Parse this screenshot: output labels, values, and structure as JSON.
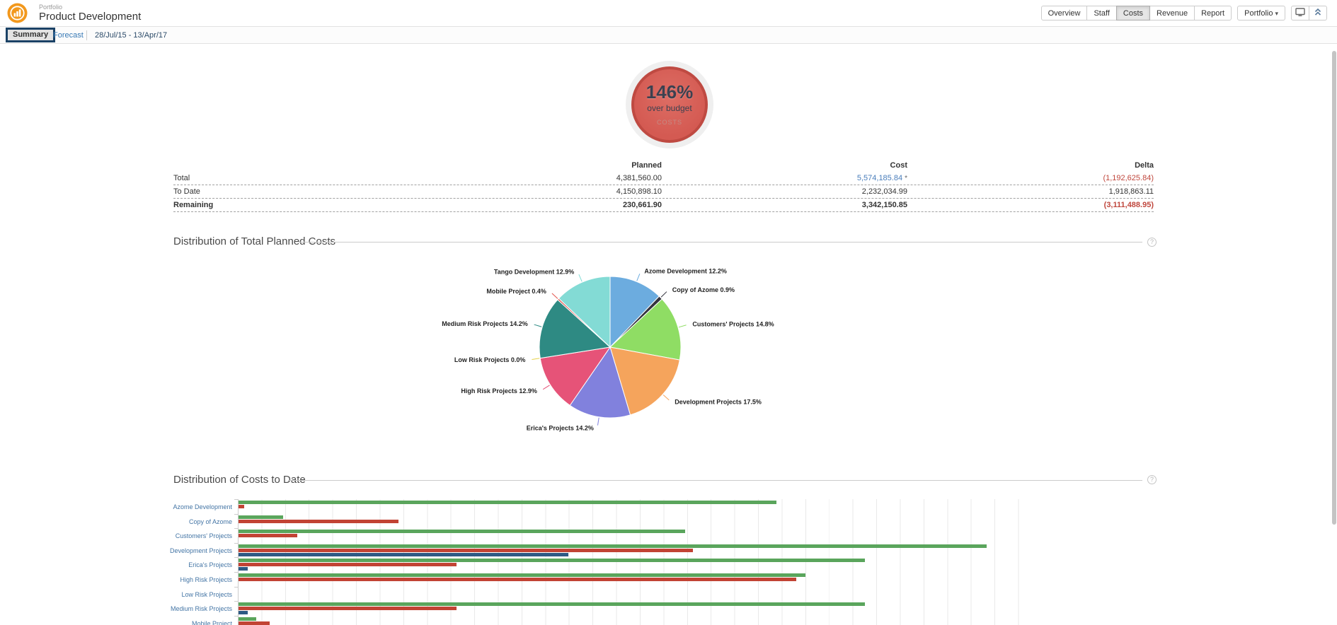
{
  "header": {
    "app_label": "Portfolio",
    "title": "Product Development",
    "nav_tabs": [
      {
        "label": "Overview",
        "active": false
      },
      {
        "label": "Staff",
        "active": false
      },
      {
        "label": "Costs",
        "active": true
      },
      {
        "label": "Revenue",
        "active": false
      },
      {
        "label": "Report",
        "active": false
      }
    ],
    "portfolio_dropdown_label": "Portfolio",
    "icon_buttons": [
      {
        "name": "monitor-icon"
      },
      {
        "name": "collapse-up-icon"
      }
    ]
  },
  "subnav": {
    "tabs": [
      {
        "label": "Summary",
        "active": true
      },
      {
        "label": "Forecast",
        "active": false
      }
    ],
    "date_range": "28/Jul/15 - 13/Apr/17"
  },
  "budget_badge": {
    "percent": "146%",
    "label": "over budget",
    "category": "COSTS",
    "fill_color": "#d45a52",
    "ring_color": "#bf4a42"
  },
  "summary_table": {
    "columns": {
      "planned": "Planned",
      "cost": "Cost",
      "delta": "Delta"
    },
    "rows": [
      {
        "label": "Total",
        "planned": "4,381,560.00",
        "cost": "5,574,185.84",
        "cost_note": "*",
        "cost_link": true,
        "delta": "(1,192,625.84)",
        "delta_color": "#c0473d",
        "bold": false
      },
      {
        "label": "To Date",
        "planned": "4,150,898.10",
        "cost": "2,232,034.99",
        "cost_note": "",
        "cost_link": false,
        "delta": "1,918,863.11",
        "delta_color": "#333333",
        "bold": false
      },
      {
        "label": "Remaining",
        "planned": "230,661.90",
        "cost": "3,342,150.85",
        "cost_note": "",
        "cost_link": false,
        "delta": "(3,111,488.95)",
        "delta_color": "#c0473d",
        "bold": true
      }
    ]
  },
  "sections": {
    "planned": {
      "title": "Distribution of Total Planned Costs",
      "help_icon": "?"
    },
    "to_date": {
      "title": "Distribution of Costs to Date",
      "help_icon": "?"
    }
  },
  "chart_data": [
    {
      "type": "pie",
      "title": "Distribution of Total Planned Costs",
      "start": "12 o'clock, clockwise",
      "label_suffix": "%",
      "slices": [
        {
          "label": "Azome Development",
          "value": 12.2,
          "color": "#6cacdf"
        },
        {
          "label": "Copy of Azome",
          "value": 0.9,
          "color": "#34343e"
        },
        {
          "label": "Customers' Projects",
          "value": 14.8,
          "color": "#8fdd64"
        },
        {
          "label": "Development Projects",
          "value": 17.5,
          "color": "#f5a45c"
        },
        {
          "label": "Erica's Projects",
          "value": 14.2,
          "color": "#8181dd"
        },
        {
          "label": "High Risk Projects",
          "value": 12.9,
          "color": "#e65378"
        },
        {
          "label": "Low Risk Projects",
          "value": 0.0,
          "color": "#e6d24b"
        },
        {
          "label": "Medium Risk Projects",
          "value": 14.2,
          "color": "#2e8a83"
        },
        {
          "label": "Mobile Project",
          "value": 0.4,
          "color": "#e3554d"
        },
        {
          "label": "Tango Development",
          "value": 12.9,
          "color": "#83dbd5"
        }
      ]
    },
    {
      "type": "bar",
      "title": "Distribution of Costs to Date",
      "orientation": "horizontal",
      "axis_note": "x-axis tick labels are not visible in the screenshot (chart cut off at bottom); values estimated as percent of plot width",
      "grid": true,
      "xlim": [
        0,
        100
      ],
      "categories": [
        "Azome Development",
        "Copy of Azome",
        "Customers' Projects",
        "Development Projects",
        "Erica's Projects",
        "High Risk Projects",
        "Low Risk Projects",
        "Medium Risk Projects",
        "Mobile Project"
      ],
      "series": [
        {
          "name": "green",
          "color": "#5aa55c",
          "values": [
            66.9,
            5.5,
            55.5,
            93.0,
            77.9,
            70.5,
            0,
            77.9,
            2.2
          ]
        },
        {
          "name": "red",
          "color": "#c24334",
          "values": [
            0.7,
            19.9,
            7.3,
            56.5,
            27.1,
            69.4,
            0,
            27.1,
            3.9
          ]
        },
        {
          "name": "blue",
          "color": "#2e5984",
          "values": [
            0,
            0,
            0,
            41.0,
            1.1,
            0,
            0,
            1.1,
            0
          ]
        }
      ]
    }
  ]
}
